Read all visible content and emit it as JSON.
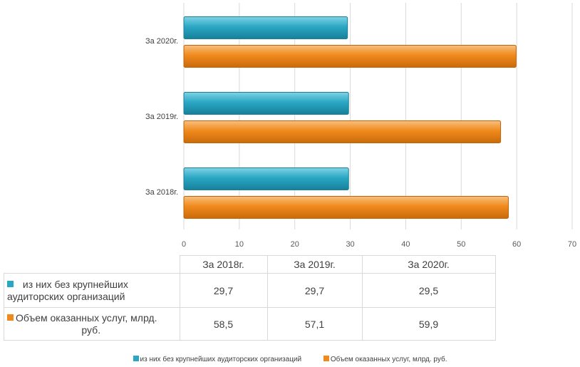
{
  "chart_data": {
    "type": "bar",
    "orientation": "horizontal",
    "categories": [
      "За 2018г.",
      "За 2019г.",
      "За 2020г."
    ],
    "series": [
      {
        "name": "из них без крупнейших аудиторских организаций",
        "values": [
          29.7,
          29.7,
          29.5
        ],
        "color": "#2aa7c4"
      },
      {
        "name": "Объем оказанных услуг, млрд. руб.",
        "values": [
          58.5,
          57.1,
          59.9
        ],
        "color": "#f08a1c"
      }
    ],
    "xlim": [
      0,
      70
    ],
    "xticks": [
      "0",
      "10",
      "20",
      "30",
      "40",
      "50",
      "60",
      "70"
    ],
    "grid": true,
    "legend_position": "bottom",
    "data_table": {
      "columns": [
        "За 2018г.",
        "За 2019г.",
        "За 2020г."
      ],
      "rows": [
        {
          "label_line1": "из них без крупнейших",
          "label_line2": "аудиторских организаций",
          "values": [
            "29,7",
            "29,7",
            "29,5"
          ]
        },
        {
          "label_line1": "Объем оказанных услуг, млрд.",
          "label_line2": "руб.",
          "values": [
            "58,5",
            "57,1",
            "59,9"
          ]
        }
      ]
    }
  }
}
